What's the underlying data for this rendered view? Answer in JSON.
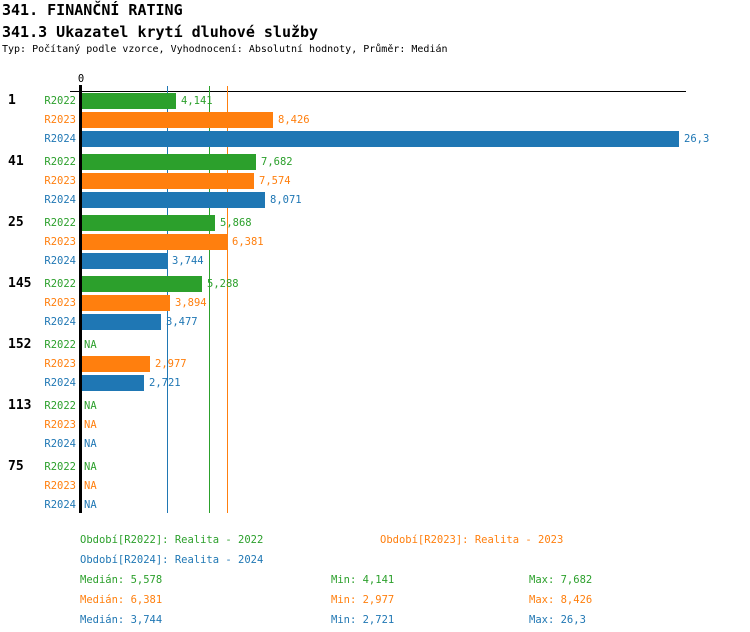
{
  "header": {
    "title": "341. FINANČNÍ RATING",
    "subtitle": "341.3 Ukazatel krytí dluhové služby",
    "meta": "Typ: Počítaný podle vzorce, Vyhodnocení: Absolutní hodnoty, Průměr: Medián"
  },
  "colors": {
    "r2022": "#2ca02c",
    "r2023": "#ff7f0e",
    "r2024": "#1f77b4",
    "axis": "#000000",
    "background": "#ffffff"
  },
  "chart_data": {
    "type": "bar",
    "orientation": "horizontal",
    "title": "341.3 Ukazatel krytí dluhové služby",
    "origin_tick_label": "0",
    "na_label": "NA",
    "categories": [
      "1",
      "41",
      "25",
      "145",
      "152",
      "113",
      "75"
    ],
    "series": [
      {
        "name": "R2022",
        "color": "#2ca02c",
        "values": [
          4.141,
          7.682,
          5.868,
          5.288,
          null,
          null,
          null
        ],
        "value_labels": [
          "4,141",
          "7,682",
          "5,868",
          "5,288",
          "NA",
          "NA",
          "NA"
        ]
      },
      {
        "name": "R2023",
        "color": "#ff7f0e",
        "values": [
          8.426,
          7.574,
          6.381,
          3.894,
          2.977,
          null,
          null
        ],
        "value_labels": [
          "8,426",
          "7,574",
          "6,381",
          "3,894",
          "2,977",
          "NA",
          "NA"
        ]
      },
      {
        "name": "R2024",
        "color": "#1f77b4",
        "values": [
          26.3,
          8.071,
          3.744,
          3.477,
          2.721,
          null,
          null
        ],
        "value_labels": [
          "26,3",
          "8,071",
          "3,744",
          "3,477",
          "2,721",
          "NA",
          "NA"
        ]
      }
    ],
    "median_lines": [
      {
        "series": "R2022",
        "value": 5.578,
        "color": "#2ca02c"
      },
      {
        "series": "R2023",
        "value": 6.381,
        "color": "#ff7f0e"
      },
      {
        "series": "R2024",
        "value": 3.744,
        "color": "#1f77b4"
      }
    ],
    "xlim": [
      0,
      26.45
    ],
    "grid": "vertical-median-lines",
    "legend_position": "bottom"
  },
  "legend": {
    "rows": [
      [
        {
          "text": "Období[R2022]: Realita - 2022",
          "color": "#2ca02c"
        },
        {
          "text": "Období[R2023]: Realita - 2023",
          "color": "#ff7f0e"
        }
      ],
      [
        {
          "text": "Období[R2024]: Realita - 2024",
          "color": "#1f77b4"
        }
      ]
    ]
  },
  "stats": [
    {
      "color": "#2ca02c",
      "median": "Medián: 5,578",
      "min": "Min: 4,141",
      "max": "Max: 7,682"
    },
    {
      "color": "#ff7f0e",
      "median": "Medián: 6,381",
      "min": "Min: 2,977",
      "max": "Max: 8,426"
    },
    {
      "color": "#1f77b4",
      "median": "Medián: 3,744",
      "min": "Min: 2,721",
      "max": "Max: 26,3"
    }
  ]
}
